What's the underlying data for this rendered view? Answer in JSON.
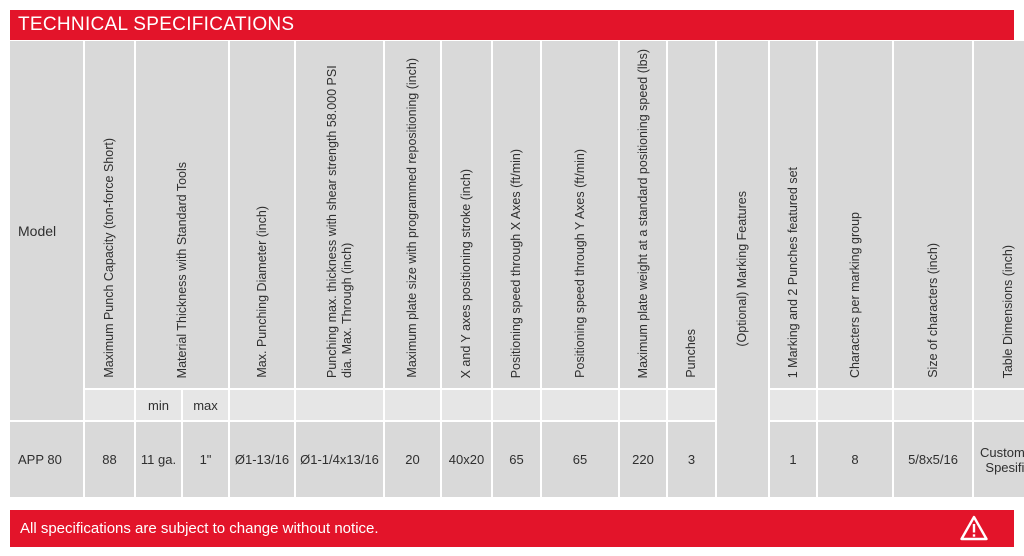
{
  "title": "TECHNICAL SPECIFICATIONS",
  "headers": {
    "model": "Model",
    "punch_capacity": "Maximum Punch Capacity (ton-force Short)",
    "material_thickness": "Material Thickness with Standard Tools",
    "punching_diameter": "Max. Punching Diameter (inch)",
    "punching_max_thickness": "Punching max. thickness with shear strength 58.000 PSI dia. Max. Through (inch)",
    "max_plate_size": "Maximum plate size with programmed repositioning (inch)",
    "xy_stroke": "X and Y axes positioning stroke (inch)",
    "speed_x": "Positioning speed through X Axes (ft/min)",
    "speed_y": "Positioning speed through Y Axes (ft/min)",
    "plate_weight": "Maximum plate weight at a standard positioning speed (lbs)",
    "punches": "Punches",
    "marking_features": "(Optional) Marking Features",
    "marking_set": "1 Marking and 2 Punches featured set",
    "chars_per_group": "Characters per marking group",
    "char_size": "Size of characters (inch)",
    "table_dimensions": "Table Dimensions (inch)"
  },
  "subheaders": {
    "min": "min",
    "max": "max"
  },
  "row": {
    "model": "APP 80",
    "punch_capacity": "88",
    "thickness_min": "11 ga.",
    "thickness_max": "1\"",
    "punching_diameter": "Ø1-13/16",
    "punching_max_thickness": "Ø1-1/4x13/16",
    "max_plate_size": "20",
    "xy_stroke": "40x20",
    "speed_x": "65",
    "speed_y": "65",
    "plate_weight": "220",
    "punches": "3",
    "marking_set": "1",
    "chars_per_group": "8",
    "char_size": "5/8x5/16",
    "table_dimensions": "Customer Spesific"
  },
  "footer": {
    "notice": "All specifications are subject to change without notice.",
    "icon": "warning-icon"
  },
  "colors": {
    "accent": "#e3142a",
    "cell": "#d9d9d9"
  }
}
